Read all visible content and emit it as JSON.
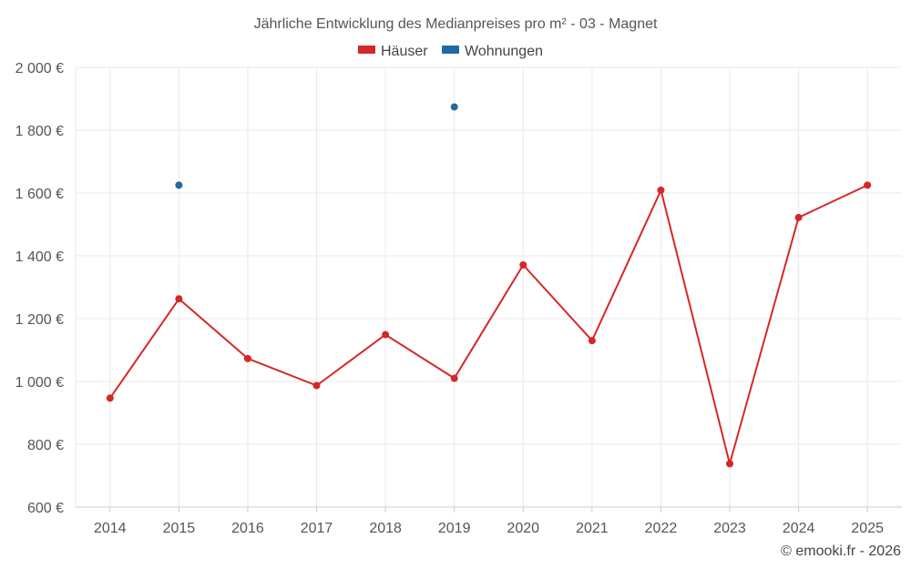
{
  "chart_data": {
    "type": "line",
    "title": "Jährliche Entwicklung des Medianpreises pro m² - 03 - Magnet",
    "categories": [
      "2014",
      "2015",
      "2016",
      "2017",
      "2018",
      "2019",
      "2020",
      "2021",
      "2022",
      "2023",
      "2024",
      "2025"
    ],
    "series": [
      {
        "name": "Häuser",
        "color": "#d62728",
        "values": [
          947,
          1263,
          1073,
          987,
          1149,
          1010,
          1371,
          1130,
          1609,
          738,
          1522,
          1625
        ]
      },
      {
        "name": "Wohnungen",
        "color": "#1f6aa5",
        "values": [
          null,
          1625,
          null,
          null,
          null,
          1874,
          null,
          null,
          null,
          null,
          null,
          null
        ]
      }
    ],
    "ylim": [
      600,
      2000
    ],
    "yticks": [
      600,
      800,
      1000,
      1200,
      1400,
      1600,
      1800,
      2000
    ],
    "ytick_labels": [
      "600 €",
      "800 €",
      "1 000 €",
      "1 200 €",
      "1 400 €",
      "1 600 €",
      "1 800 €",
      "2 000 €"
    ],
    "grid": true,
    "legend": "top-center",
    "xlabel": "",
    "ylabel": ""
  },
  "credit": "© emooki.fr - 2026"
}
